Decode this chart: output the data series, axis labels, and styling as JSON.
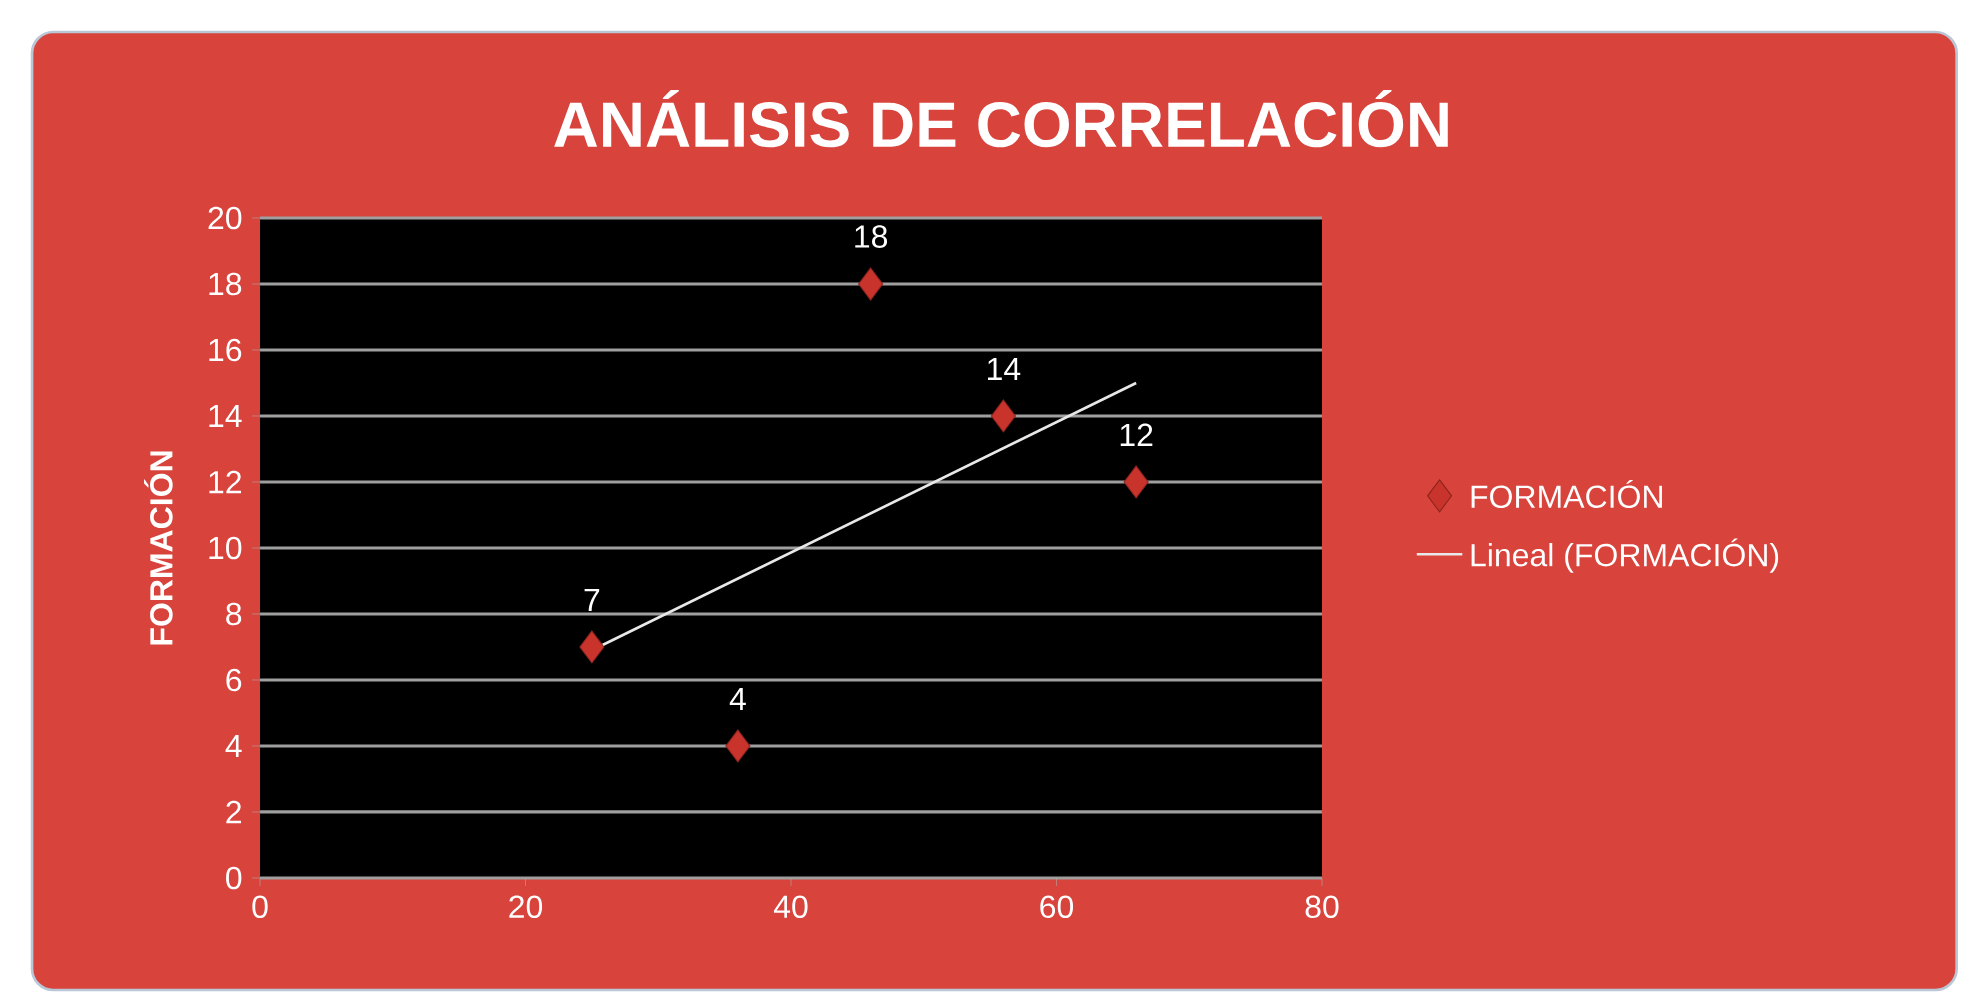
{
  "chart_data": {
    "type": "scatter",
    "title": "ANÁLISIS DE CORRELACIÓN",
    "ylabel": "FORMACIÓN",
    "x": [
      25,
      36,
      46,
      56,
      66
    ],
    "series": [
      {
        "name": "FORMACIÓN",
        "color": "#c8342c",
        "values": [
          7,
          4,
          18,
          14,
          12
        ],
        "value_labels": [
          "7",
          "4",
          "18",
          "14",
          "12"
        ],
        "marker": "diamond"
      },
      {
        "name": "Lineal (FORMACIÓN)",
        "type": "line",
        "color": "#e8e8e8",
        "x": [
          25,
          66
        ],
        "values": [
          6.9,
          15.0
        ],
        "marker": "none"
      }
    ],
    "xlim": [
      0,
      80
    ],
    "xticks": [
      0,
      20,
      40,
      60,
      80
    ],
    "ylim": [
      0,
      20
    ],
    "yticks": [
      0,
      2,
      4,
      6,
      8,
      10,
      12,
      14,
      16,
      18,
      20
    ],
    "grid": "y",
    "legend": "right"
  }
}
